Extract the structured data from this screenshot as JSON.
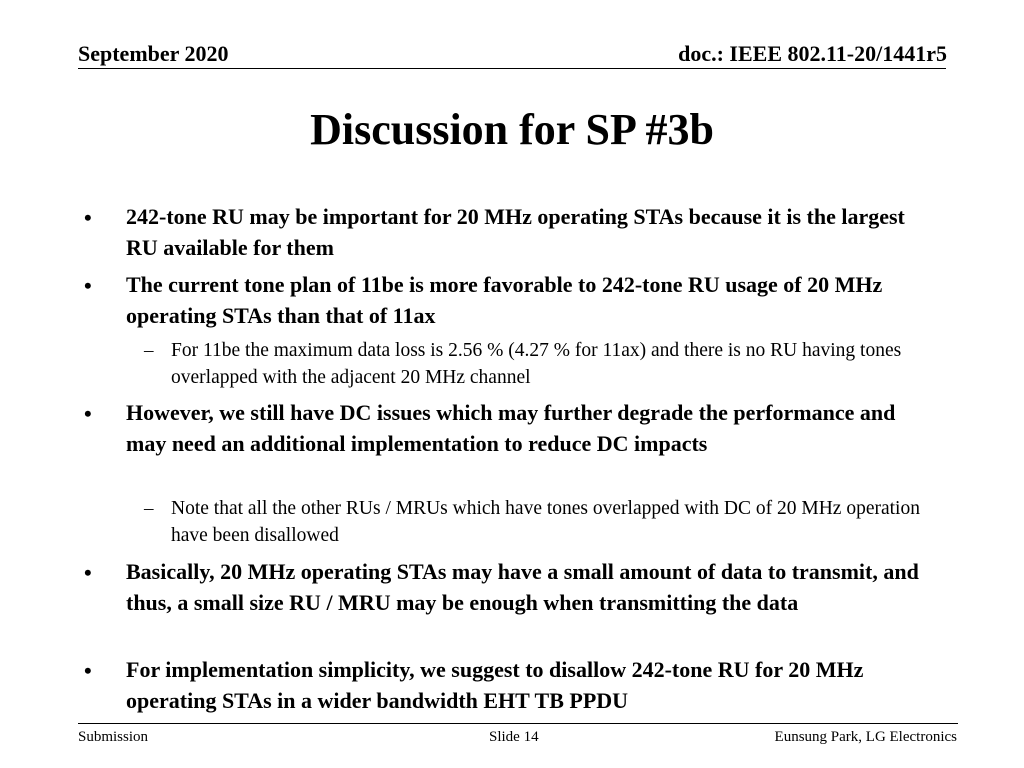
{
  "header": {
    "date": "September 2020",
    "doc_id": "doc.: IEEE 802.11-20/1441r5"
  },
  "title": "Discussion for SP #3b",
  "bullets": [
    {
      "mark": "•",
      "text": "242-tone RU may be important for 20 MHz operating STAs because it is the largest RU available for them"
    },
    {
      "mark": "•",
      "text": "The current tone plan of 11be is more favorable to 242-tone RU usage of 20 MHz operating STAs than that of 11ax",
      "sub": {
        "mark": "–",
        "text": "For 11be the maximum data loss is 2.56 % (4.27 % for 11ax) and there is no RU having tones overlapped with the adjacent 20 MHz channel"
      }
    },
    {
      "mark": "•",
      "text": "However, we still have DC issues which may further degrade the performance and may need an additional implementation to reduce DC impacts",
      "sub": {
        "mark": "–",
        "text": "Note that all the other RUs / MRUs which have tones overlapped with DC of 20 MHz operation have been disallowed"
      }
    },
    {
      "mark": "•",
      "text": "Basically, 20 MHz operating STAs may have a small amount of data to transmit, and thus, a small size RU / MRU may be enough when transmitting the data"
    },
    {
      "mark": "•",
      "text": "For implementation simplicity, we suggest to disallow 242-tone RU for 20 MHz operating STAs in a wider bandwidth EHT TB PPDU"
    }
  ],
  "footer": {
    "left": "Submission",
    "center": "Slide 14",
    "right": "Eunsung Park, LG Electronics"
  }
}
